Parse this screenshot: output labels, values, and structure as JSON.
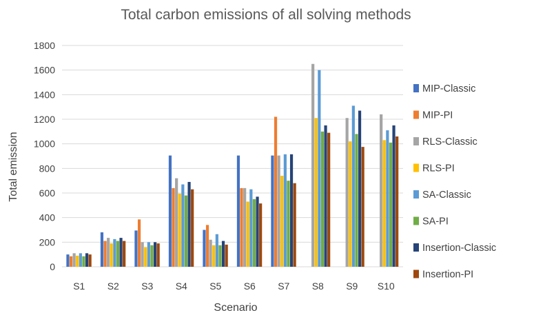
{
  "chart_data": {
    "type": "bar",
    "title": "Total carbon emissions of all solving methods",
    "xlabel": "Scenario",
    "ylabel": "Total emission",
    "ylim": [
      0,
      1800
    ],
    "yticks": [
      0,
      200,
      400,
      600,
      800,
      1000,
      1200,
      1400,
      1600,
      1800
    ],
    "grid": true,
    "legend_position": "right",
    "categories": [
      "S1",
      "S2",
      "S3",
      "S4",
      "S5",
      "S6",
      "S7",
      "S8",
      "S9",
      "S10"
    ],
    "series": [
      {
        "name": "MIP-Classic",
        "color": "#4472C4",
        "values": [
          100,
          280,
          295,
          905,
          300,
          905,
          905,
          null,
          null,
          null
        ]
      },
      {
        "name": "MIP-PI",
        "color": "#ED7D31",
        "values": [
          85,
          210,
          385,
          640,
          340,
          640,
          1220,
          null,
          null,
          null
        ]
      },
      {
        "name": "RLS-Classic",
        "color": "#A5A5A5",
        "values": [
          110,
          235,
          200,
          720,
          220,
          640,
          905,
          1650,
          1210,
          1240
        ]
      },
      {
        "name": "RLS-PI",
        "color": "#FFC000",
        "values": [
          90,
          190,
          160,
          595,
          175,
          530,
          740,
          1210,
          1020,
          1030
        ]
      },
      {
        "name": "SA-Classic",
        "color": "#5B9BD5",
        "values": [
          110,
          225,
          200,
          670,
          265,
          630,
          915,
          1600,
          1310,
          1110
        ]
      },
      {
        "name": "SA-PI",
        "color": "#70AD47",
        "values": [
          85,
          210,
          175,
          580,
          175,
          550,
          700,
          1100,
          1080,
          1010
        ]
      },
      {
        "name": "Insertion-Classic",
        "color": "#264478",
        "values": [
          110,
          235,
          200,
          690,
          210,
          570,
          915,
          1150,
          1270,
          1150
        ]
      },
      {
        "name": "Insertion-PI",
        "color": "#9E480E",
        "values": [
          100,
          210,
          190,
          630,
          180,
          515,
          680,
          1090,
          975,
          1060
        ]
      }
    ]
  }
}
